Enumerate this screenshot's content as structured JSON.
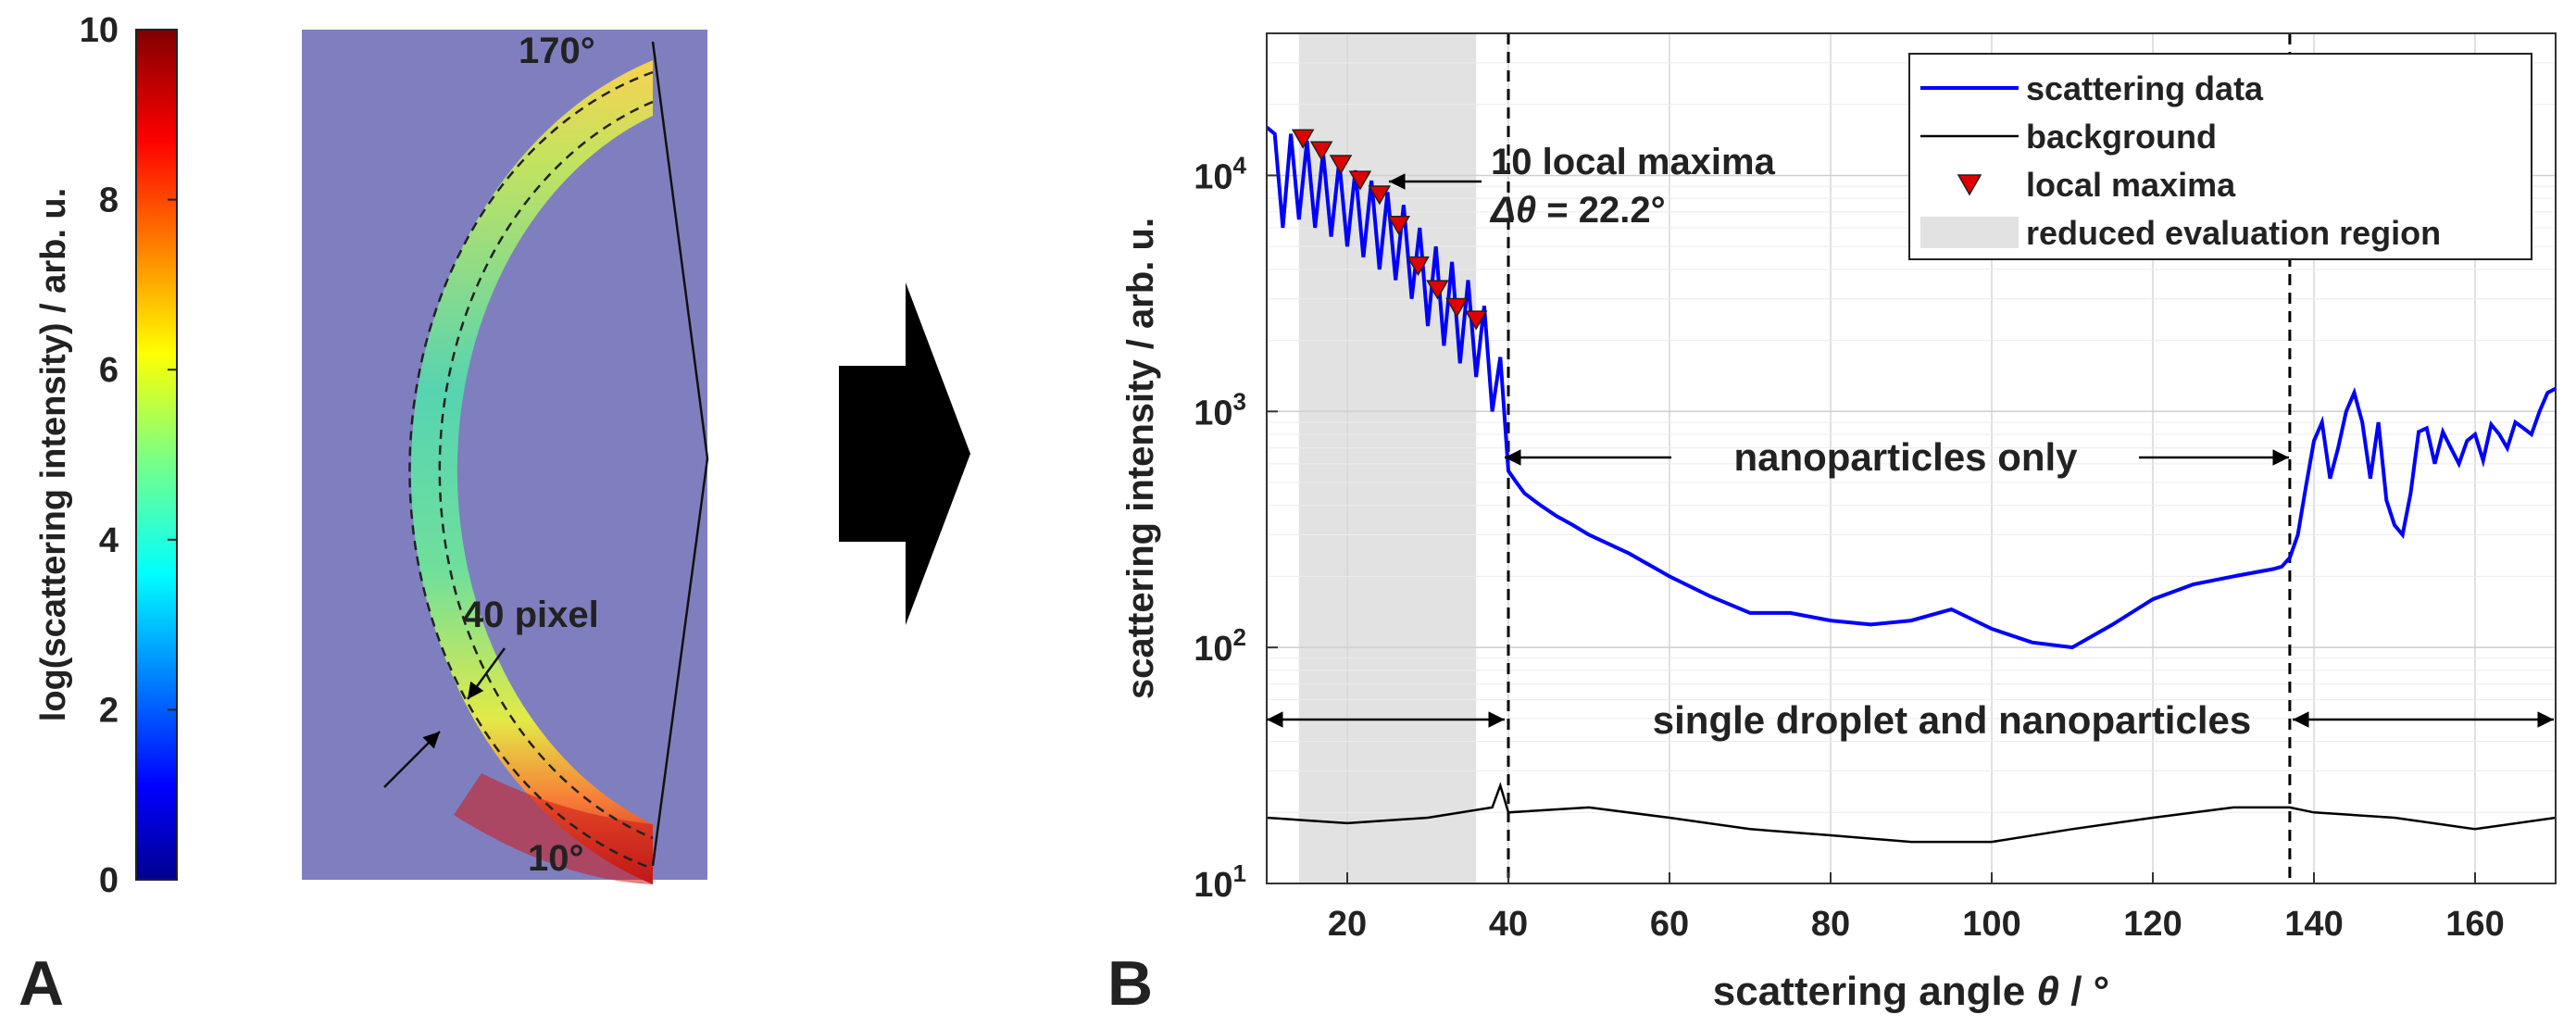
{
  "panel_a": {
    "label": "A",
    "colorbar": {
      "ylabel": "log(scattering intensity) / arb. u.",
      "range": [
        0,
        10
      ],
      "ticks": [
        0,
        2,
        4,
        6,
        8,
        10
      ],
      "colormap": "jet"
    },
    "detector": {
      "background_color": "#7f7fbf",
      "angle_labels": [
        "170°",
        "10°"
      ],
      "annotation": "40 pixel"
    }
  },
  "chart_data": {
    "type": "line",
    "panel_label": "B",
    "xlabel": "scattering angle θ / °",
    "ylabel": "scattering intensity / arb. u.",
    "xlim": [
      10,
      170
    ],
    "ylim": [
      10,
      40000
    ],
    "yscale": "log",
    "xticks": [
      20,
      40,
      60,
      80,
      100,
      120,
      140,
      160
    ],
    "yticks": [
      {
        "value": 10,
        "base": "10",
        "exp": "1"
      },
      {
        "value": 100,
        "base": "10",
        "exp": "2"
      },
      {
        "value": 1000,
        "base": "10",
        "exp": "3"
      },
      {
        "value": 10000,
        "base": "10",
        "exp": "4"
      }
    ],
    "grid": true,
    "legend_position": "top-right",
    "legend": [
      {
        "label": "scattering data",
        "kind": "line",
        "color": "#0000ff"
      },
      {
        "label": "background",
        "kind": "line",
        "color": "#000000"
      },
      {
        "label": "local maxima",
        "kind": "marker",
        "color": "#e00000"
      },
      {
        "label": "reduced evaluation region",
        "kind": "patch",
        "color": "#e0e0e0"
      }
    ],
    "series": [
      {
        "name": "scattering data",
        "color": "#0000ff",
        "x": [
          10,
          11,
          12,
          13,
          14,
          15,
          16,
          17,
          18,
          19,
          20,
          21,
          22,
          23,
          24,
          25,
          26,
          27,
          28,
          29,
          30,
          31,
          32,
          33,
          34,
          35,
          36,
          37,
          38,
          39,
          40,
          41,
          42,
          44,
          46,
          48,
          50,
          55,
          60,
          65,
          70,
          75,
          80,
          85,
          90,
          95,
          100,
          105,
          110,
          115,
          120,
          125,
          130,
          135,
          136,
          137,
          138,
          139,
          140,
          141,
          142,
          143,
          144,
          145,
          146,
          147,
          148,
          149,
          150,
          151,
          152,
          153,
          154,
          155,
          156,
          157,
          158,
          159,
          160,
          161,
          162,
          163,
          164,
          165,
          166,
          167,
          168,
          169,
          170
        ],
        "y": [
          16000,
          15000,
          6000,
          15000,
          6500,
          14000,
          6000,
          12500,
          5500,
          11500,
          5000,
          10500,
          4500,
          9500,
          4000,
          8500,
          3600,
          7500,
          3000,
          6000,
          2300,
          5000,
          1900,
          4300,
          1600,
          3600,
          1400,
          2800,
          1000,
          1700,
          560,
          500,
          450,
          400,
          360,
          330,
          300,
          250,
          200,
          165,
          140,
          140,
          130,
          125,
          130,
          145,
          120,
          105,
          100,
          125,
          160,
          185,
          200,
          215,
          220,
          240,
          300,
          480,
          750,
          900,
          520,
          700,
          1000,
          1200,
          900,
          520,
          900,
          420,
          330,
          300,
          450,
          820,
          850,
          600,
          820,
          700,
          600,
          750,
          800,
          620,
          880,
          800,
          700,
          900,
          850,
          800,
          1000,
          1200,
          1250
        ]
      },
      {
        "name": "background",
        "color": "#000000",
        "x": [
          10,
          20,
          30,
          38,
          39,
          40,
          50,
          60,
          70,
          80,
          90,
          100,
          110,
          120,
          130,
          137,
          140,
          150,
          160,
          170
        ],
        "y": [
          19,
          18,
          19,
          21,
          26,
          20,
          21,
          19,
          17,
          16,
          15,
          15,
          17,
          19,
          21,
          21,
          20,
          19,
          17,
          19
        ]
      },
      {
        "name": "local maxima",
        "color": "#e00000",
        "x": [
          14.5,
          16.8,
          19.2,
          21.6,
          24.0,
          26.4,
          28.8,
          31.2,
          33.6,
          36.0
        ],
        "y": [
          13500,
          12000,
          10500,
          9000,
          7800,
          5800,
          3900,
          3100,
          2600,
          2300
        ]
      }
    ],
    "shaded_region": {
      "label": "reduced evaluation region",
      "x": [
        14,
        36
      ]
    },
    "vlines": [
      40,
      137
    ],
    "annotations": {
      "maxima_text_line1": "10 local maxima",
      "maxima_delta_symbol": "Δθ",
      "maxima_delta_value": " = 22.2°",
      "nanoparticles_only": "nanoparticles only",
      "single_droplet": "single droplet and nanoparticles"
    }
  },
  "arrow_color": "#000000"
}
